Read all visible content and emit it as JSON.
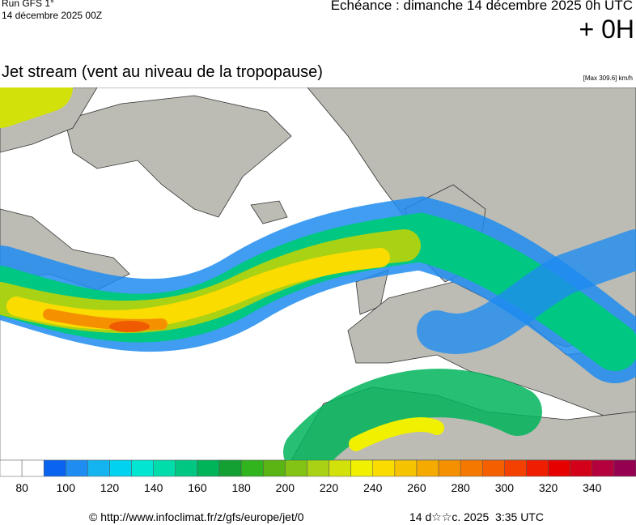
{
  "header": {
    "run": "Run GFS 1°",
    "date": "14 décembre 2025 00Z",
    "echeance": "Echéance : dimanche 14 décembre 2025 0h UTC",
    "step": "+ 0H"
  },
  "map": {
    "title": "Jet stream (vent au niveau de la tropopause)",
    "max": "[Max 309.6] km/h"
  },
  "colorbar": {
    "ticks": [
      80,
      100,
      120,
      140,
      160,
      180,
      200,
      220,
      240,
      260,
      280,
      300,
      320,
      340
    ],
    "colors": [
      "#ffffff",
      "#ffffff",
      "#0a64f0",
      "#1e8cf0",
      "#14b4f0",
      "#00d2f0",
      "#00e6d2",
      "#00dcaa",
      "#00c882",
      "#00b45a",
      "#14a032",
      "#32b41e",
      "#5ab414",
      "#82c314",
      "#aad214",
      "#d2e10a",
      "#f0f000",
      "#fadc00",
      "#f5c300",
      "#f5aa00",
      "#f59100",
      "#f57800",
      "#f55f00",
      "#f54100",
      "#f01e00",
      "#e60000",
      "#d20019",
      "#b4003c",
      "#960050"
    ]
  },
  "footer": {
    "url": "© http://www.infoclimat.fr/z/gfs/europe/jet/0",
    "generated": "14 d☆☆c. 2025  3:35 UTC"
  }
}
